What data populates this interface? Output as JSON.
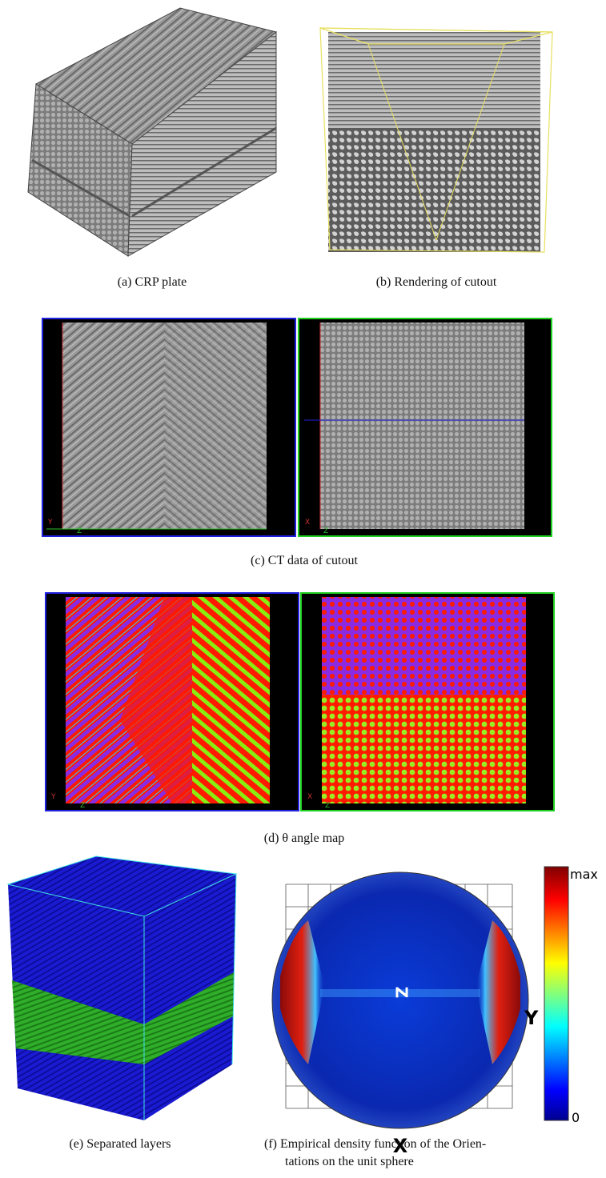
{
  "figure": {
    "panels": [
      {
        "caption": "(a) CRP plate"
      },
      {
        "caption": "(b) Rendering of cutout"
      },
      {
        "caption": "(c) CT data of cutout",
        "views": [
          {
            "axes": [
              "Y",
              "Z"
            ]
          },
          {
            "axes": [
              "X",
              "Z"
            ]
          }
        ]
      },
      {
        "caption": "(d) θ angle map",
        "views": [
          {
            "axes": [
              "Y",
              "Z"
            ]
          },
          {
            "axes": [
              "X",
              "Z"
            ]
          }
        ]
      },
      {
        "caption": "(e) Separated layers"
      },
      {
        "caption": [
          "(f) Empirical density function of the Orien-",
          "tations on the unit sphere"
        ],
        "colorbar": {
          "max": "max",
          "min": "0"
        },
        "axes": {
          "x": "X",
          "y": "Y",
          "z": "Z"
        }
      }
    ]
  }
}
